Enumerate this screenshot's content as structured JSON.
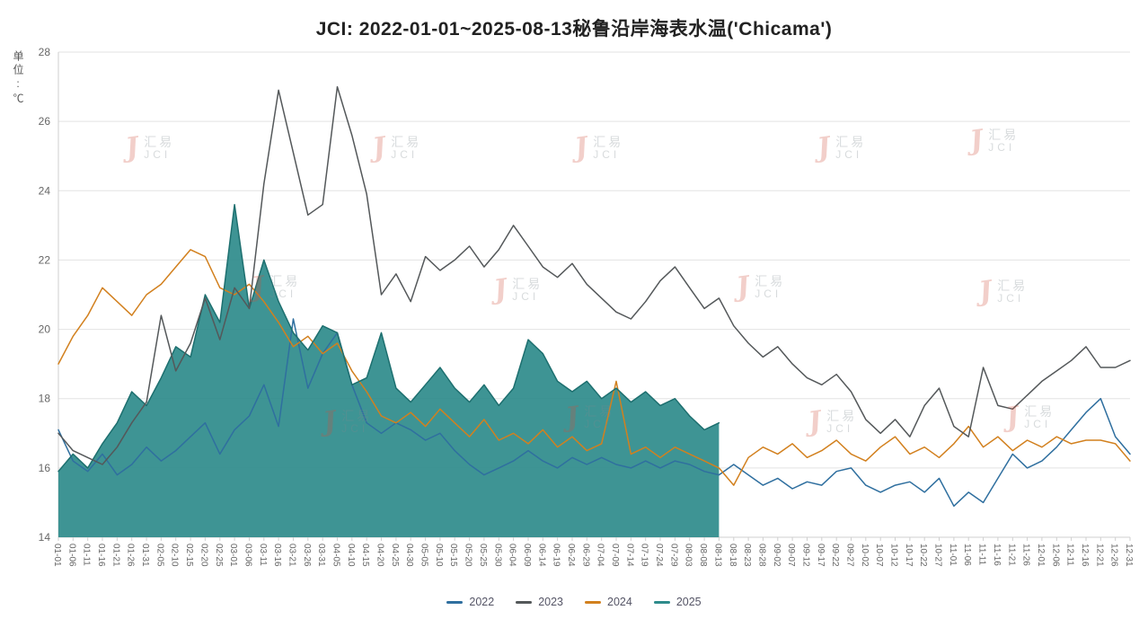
{
  "title": "JCI: 2022-01-01~2025-08-13秘鲁沿岸海表水温('Chicama')",
  "y_axis_unit": "单位:℃",
  "watermark": {
    "brand_cn": "汇易",
    "brand_en": "JCI"
  },
  "chart_data": {
    "type": "line",
    "title": "JCI: 2022-01-01~2025-08-13秘鲁沿岸海表水温('Chicama')",
    "xlabel": "",
    "ylabel": "单位:℃",
    "ylim": [
      14,
      28
    ],
    "y_ticks": [
      14,
      16,
      18,
      20,
      22,
      24,
      26,
      28
    ],
    "grid": true,
    "legend_position": "bottom",
    "x": [
      "01-01",
      "01-06",
      "01-11",
      "01-16",
      "01-21",
      "01-26",
      "01-31",
      "02-05",
      "02-10",
      "02-15",
      "02-20",
      "02-25",
      "03-01",
      "03-06",
      "03-11",
      "03-16",
      "03-21",
      "03-26",
      "03-31",
      "04-05",
      "04-10",
      "04-15",
      "04-20",
      "04-25",
      "04-30",
      "05-05",
      "05-10",
      "05-15",
      "05-20",
      "05-25",
      "05-30",
      "06-04",
      "06-09",
      "06-14",
      "06-19",
      "06-24",
      "06-29",
      "07-04",
      "07-09",
      "07-14",
      "07-19",
      "07-24",
      "07-29",
      "08-03",
      "08-08",
      "08-13",
      "08-18",
      "08-23",
      "08-28",
      "09-02",
      "09-07",
      "09-12",
      "09-17",
      "09-22",
      "09-27",
      "10-02",
      "10-07",
      "10-12",
      "10-17",
      "10-22",
      "10-27",
      "11-01",
      "11-06",
      "11-11",
      "11-16",
      "11-21",
      "11-26",
      "12-01",
      "12-06",
      "12-11",
      "12-16",
      "12-21",
      "12-26",
      "12-31"
    ],
    "series": [
      {
        "name": "2022",
        "color": "#2f6f9f",
        "area": false,
        "values": [
          17.1,
          16.2,
          15.9,
          16.4,
          15.8,
          16.1,
          16.6,
          16.2,
          16.5,
          16.9,
          17.3,
          16.4,
          17.1,
          17.5,
          18.4,
          17.2,
          20.3,
          18.3,
          19.3,
          19.9,
          18.4,
          17.3,
          17.0,
          17.3,
          17.1,
          16.8,
          17.0,
          16.5,
          16.1,
          15.8,
          16.0,
          16.2,
          16.5,
          16.2,
          16.0,
          16.3,
          16.1,
          16.3,
          16.1,
          16.0,
          16.2,
          16.0,
          16.2,
          16.1,
          15.9,
          15.8,
          16.1,
          15.8,
          15.5,
          15.7,
          15.4,
          15.6,
          15.5,
          15.9,
          16.0,
          15.5,
          15.3,
          15.5,
          15.6,
          15.3,
          15.7,
          14.9,
          15.3,
          15.0,
          15.7,
          16.4,
          16.0,
          16.2,
          16.6,
          17.1,
          17.6,
          18.0,
          16.9,
          16.4
        ]
      },
      {
        "name": "2023",
        "color": "#54585a",
        "area": false,
        "values": [
          17.0,
          16.5,
          16.3,
          16.1,
          16.6,
          17.3,
          17.9,
          20.4,
          18.8,
          19.6,
          20.9,
          19.7,
          21.2,
          20.6,
          24.2,
          26.9,
          25.1,
          23.3,
          23.6,
          27.0,
          25.6,
          23.9,
          21.0,
          21.6,
          20.8,
          22.1,
          21.7,
          22.0,
          22.4,
          21.8,
          22.3,
          23.0,
          22.4,
          21.8,
          21.5,
          21.9,
          21.3,
          20.9,
          20.5,
          20.3,
          20.8,
          21.4,
          21.8,
          21.2,
          20.6,
          20.9,
          20.1,
          19.6,
          19.2,
          19.5,
          19.0,
          18.6,
          18.4,
          18.7,
          18.2,
          17.4,
          17.0,
          17.4,
          16.9,
          17.8,
          18.3,
          17.2,
          16.9,
          18.9,
          17.8,
          17.7,
          18.1,
          18.5,
          18.8,
          19.1,
          19.5,
          18.9,
          18.9,
          19.1
        ]
      },
      {
        "name": "2024",
        "color": "#d2801e",
        "area": false,
        "values": [
          19.0,
          19.8,
          20.4,
          21.2,
          20.8,
          20.4,
          21.0,
          21.3,
          21.8,
          22.3,
          22.1,
          21.2,
          21.0,
          21.3,
          20.8,
          20.2,
          19.5,
          19.8,
          19.3,
          19.6,
          18.8,
          18.2,
          17.5,
          17.3,
          17.6,
          17.2,
          17.7,
          17.3,
          16.9,
          17.4,
          16.8,
          17.0,
          16.7,
          17.1,
          16.6,
          16.9,
          16.5,
          16.7,
          18.5,
          16.4,
          16.6,
          16.3,
          16.6,
          16.4,
          16.2,
          16.0,
          15.5,
          16.3,
          16.6,
          16.4,
          16.7,
          16.3,
          16.5,
          16.8,
          16.4,
          16.2,
          16.6,
          16.9,
          16.4,
          16.6,
          16.3,
          16.7,
          17.2,
          16.6,
          16.9,
          16.5,
          16.8,
          16.6,
          16.9,
          16.7,
          16.8,
          16.8,
          16.7,
          16.2
        ]
      },
      {
        "name": "2025",
        "color": "#2e8b8b",
        "line_color": "#1d6f6f",
        "area": true,
        "values": [
          15.9,
          16.4,
          16.0,
          16.7,
          17.3,
          18.2,
          17.8,
          18.6,
          19.5,
          19.2,
          21.0,
          20.2,
          23.6,
          20.6,
          22.0,
          20.8,
          19.9,
          19.4,
          20.1,
          19.9,
          18.4,
          18.6,
          19.9,
          18.3,
          17.9,
          18.4,
          18.9,
          18.3,
          17.9,
          18.4,
          17.8,
          18.3,
          19.7,
          19.3,
          18.5,
          18.2,
          18.5,
          18.0,
          18.3,
          17.9,
          18.2,
          17.8,
          18.0,
          17.5,
          17.1,
          17.3
        ]
      }
    ]
  }
}
